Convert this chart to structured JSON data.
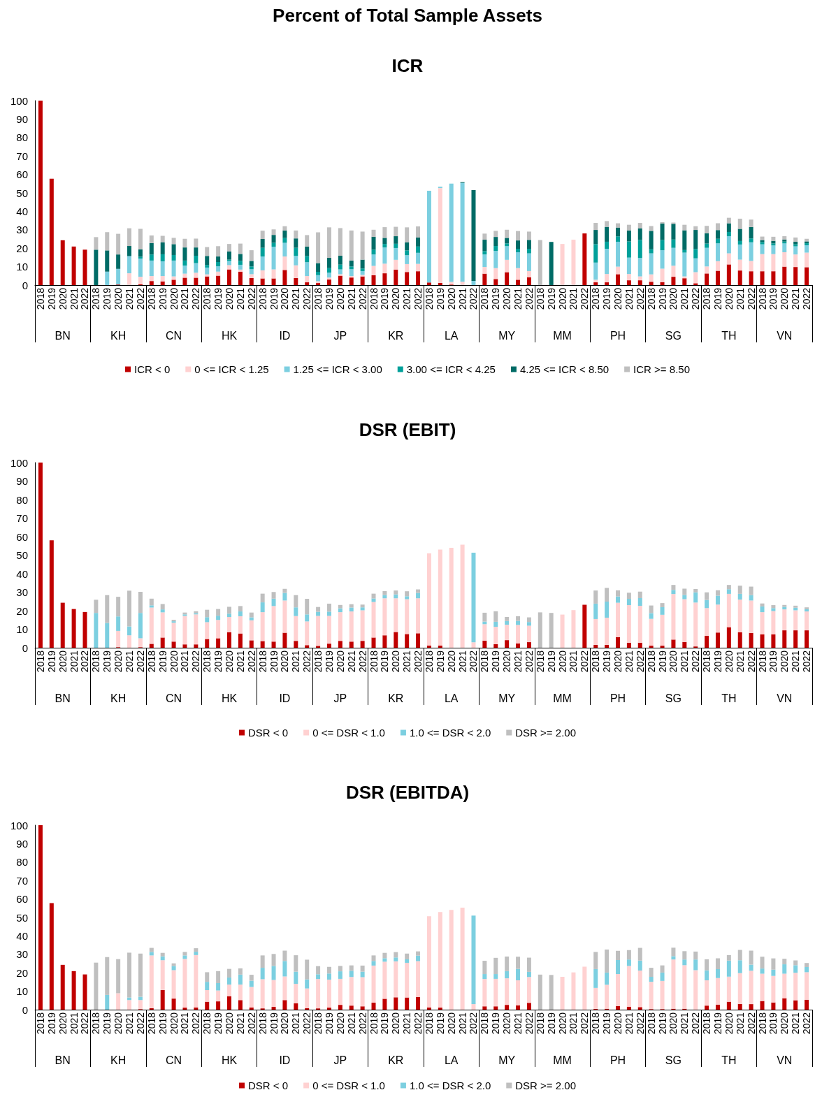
{
  "chart_data": [
    {
      "type": "bar",
      "stacked": true,
      "title": "Percent of Total Sample Assets",
      "subtitle": "ICR",
      "legend": "bottom",
      "ylim": [
        0,
        100
      ],
      "yticks": [
        0,
        10,
        20,
        30,
        40,
        50,
        60,
        70,
        80,
        90,
        100
      ],
      "categories": [
        "2018",
        "2019",
        "2020",
        "2021",
        "2022",
        "2018",
        "2019",
        "2020",
        "2021",
        "2022",
        "2018",
        "2019",
        "2020",
        "2021",
        "2022",
        "2018",
        "2019",
        "2020",
        "2021",
        "2022",
        "2018",
        "2019",
        "2020",
        "2021",
        "2022",
        "2018",
        "2019",
        "2020",
        "2021",
        "2022",
        "2018",
        "2019",
        "2020",
        "2021",
        "2022",
        "2018",
        "2019",
        "2020",
        "2021",
        "2022",
        "2018",
        "2019",
        "2020",
        "2021",
        "2022",
        "2018",
        "2019",
        "2020",
        "2021",
        "2022",
        "2018",
        "2019",
        "2020",
        "2021",
        "2022",
        "2018",
        "2019",
        "2020",
        "2021",
        "2022",
        "2018",
        "2019",
        "2020",
        "2021",
        "2022",
        "2018",
        "2019",
        "2020",
        "2021",
        "2022"
      ],
      "annotations": [
        "BN",
        "KH",
        "CN",
        "HK",
        "ID",
        "JP",
        "KR",
        "LA",
        "MY",
        "MM",
        "PH",
        "SG",
        "TH",
        "VN"
      ],
      "series": [
        {
          "name": "ICR < 0",
          "color": "#c00000",
          "values": [
            100,
            57.7,
            24.3,
            20.9,
            19.2,
            0,
            0,
            0.3,
            0,
            0.4,
            2.2,
            2,
            2.9,
            4,
            4,
            4.7,
            5.1,
            8.5,
            7.3,
            3.8,
            3.6,
            3.6,
            8.2,
            3.8,
            1.5,
            1.1,
            3,
            5.1,
            4.1,
            4.7,
            5.3,
            6.4,
            8.4,
            7.1,
            7.5,
            1.4,
            1.2,
            0.3,
            0,
            0,
            6.2,
            3.3,
            7,
            2.9,
            4.2,
            0,
            0,
            0,
            0,
            28,
            1.5,
            1.5,
            5.9,
            2.6,
            2.6,
            1.8,
            1.6,
            4.5,
            3.7,
            1,
            6.3,
            7.8,
            11.2,
            7.9,
            7.5,
            7.5,
            7.5,
            10,
            9.8,
            9.7
          ]
        },
        {
          "name": "0 <= ICR < 1.25",
          "color": "#ffd1d1",
          "values": [
            0,
            0,
            0,
            0,
            0,
            0,
            0,
            0,
            6.4,
            4.1,
            2.7,
            2.9,
            1.8,
            2.2,
            2.7,
            1.1,
            2.2,
            2.3,
            1.1,
            2.1,
            4.4,
            4.9,
            7.3,
            6.9,
            3.4,
            1,
            1.1,
            0.8,
            0.8,
            0.8,
            5.1,
            5.2,
            5.3,
            4.3,
            4,
            0,
            51.4,
            1.4,
            1.8,
            0,
            3.6,
            5.9,
            6.7,
            6.3,
            3.4,
            0,
            0,
            22.3,
            24.6,
            0,
            1.4,
            4.5,
            4.1,
            3.4,
            2.1,
            4,
            7.3,
            6,
            1,
            6,
            3.8,
            5.2,
            6,
            5.9,
            5.6,
            9.3,
            9.3,
            7.8,
            6.8,
            7.9
          ]
        },
        {
          "name": "1.25 <= ICR < 3.00",
          "color": "#7ccfe0",
          "values": [
            0,
            0,
            0,
            0,
            0,
            0,
            7.3,
            8.5,
            9.3,
            9.9,
            8.4,
            8,
            8.6,
            4.4,
            5.2,
            3.7,
            2.9,
            2.3,
            2.6,
            2.7,
            7.5,
            12.3,
            7.4,
            5.1,
            7.5,
            3.3,
            2.6,
            2.6,
            3.7,
            2.1,
            6.2,
            8.8,
            6.4,
            4.8,
            6,
            49.7,
            0.7,
            53.3,
            53.6,
            2.3,
            6.8,
            9.3,
            7.4,
            8.6,
            9.6,
            0,
            0,
            0,
            0,
            0,
            9.3,
            13.7,
            13.5,
            8.9,
            10,
            11.4,
            10,
            9.7,
            12.9,
            7.5,
            10.1,
            9.6,
            9.3,
            8.2,
            10.1,
            5.3,
            4.7,
            4.8,
            4.4,
            4
          ]
        },
        {
          "name": "3.00 <= ICR < 4.25",
          "color": "#00a09a",
          "values": [
            0,
            0,
            0,
            0,
            0,
            0,
            0,
            0,
            0,
            1,
            3.3,
            3.8,
            3,
            2.7,
            4,
            1.4,
            2.3,
            0.7,
            2.1,
            1.5,
            4.7,
            2.1,
            2.6,
            4.4,
            3.3,
            1.8,
            2.5,
            2.6,
            1.5,
            1.4,
            2.6,
            1.9,
            2.3,
            2.6,
            3.4,
            0,
            0,
            0,
            0,
            0,
            1.8,
            2.7,
            1.5,
            1.9,
            2.5,
            0,
            0,
            0,
            0,
            0,
            10,
            3.8,
            2.9,
            8.8,
            9.8,
            2.2,
            5.5,
            4.5,
            1.4,
            5.1,
            2.3,
            2.5,
            2.3,
            1.9,
            2.1,
            1.2,
            1.1,
            1,
            1.1,
            1.1
          ]
        },
        {
          "name": "4.25 <= ICR < 8.50",
          "color": "#006b66",
          "values": [
            0,
            0,
            0,
            0,
            0,
            19.2,
            11.5,
            7.8,
            5.5,
            4,
            6.2,
            6.4,
            5.9,
            7.1,
            4.5,
            4.9,
            3,
            4.4,
            3.8,
            3,
            4.8,
            4.3,
            4.1,
            5.1,
            5.2,
            4.7,
            5.6,
            4.8,
            3.2,
            4.8,
            7,
            3.3,
            4.1,
            4.3,
            4.9,
            0,
            0,
            0,
            0.4,
            49.2,
            6.2,
            4.9,
            3,
            4.5,
            4.8,
            0,
            23.4,
            0,
            0,
            0,
            7.7,
            8.1,
            4.8,
            5.9,
            6.2,
            10,
            9,
            8.5,
            10.7,
            10.3,
            5.6,
            4.7,
            4.7,
            6.6,
            6.2,
            1.1,
            1.4,
            1.1,
            1.4,
            1
          ]
        },
        {
          "name": "ICR >= 8.50",
          "color": "#bfbfbf",
          "values": [
            0,
            0,
            0,
            0,
            0,
            6.8,
            9.9,
            11.2,
            9.6,
            11.1,
            4.1,
            3.6,
            3.4,
            4.7,
            4.8,
            4.8,
            5.6,
            4.1,
            5.6,
            5.8,
            4.5,
            3,
            2.3,
            4.3,
            6.2,
            16.7,
            16.5,
            15,
            16.3,
            15.2,
            3.8,
            5.8,
            5.1,
            8.2,
            6,
            0,
            0,
            0,
            0,
            0,
            3.3,
            3.3,
            4.4,
            5.1,
            4.5,
            24.4,
            0,
            0,
            0,
            0,
            3.8,
            3.1,
            2.3,
            3.1,
            3,
            2.6,
            0.7,
            0.7,
            3,
            2,
            4,
            3.7,
            3,
            5.5,
            4,
            1.9,
            2.2,
            1.8,
            2.3,
            1.4
          ]
        }
      ]
    },
    {
      "type": "bar",
      "stacked": true,
      "title": "DSR (EBIT)",
      "legend": "bottom",
      "ylim": [
        0,
        100
      ],
      "yticks": [
        0,
        10,
        20,
        30,
        40,
        50,
        60,
        70,
        80,
        90,
        100
      ],
      "categories": [
        "2018",
        "2019",
        "2020",
        "2021",
        "2022",
        "2018",
        "2019",
        "2020",
        "2021",
        "2022",
        "2018",
        "2019",
        "2020",
        "2021",
        "2022",
        "2018",
        "2019",
        "2020",
        "2021",
        "2022",
        "2018",
        "2019",
        "2020",
        "2021",
        "2022",
        "2018",
        "2019",
        "2020",
        "2021",
        "2022",
        "2018",
        "2019",
        "2020",
        "2021",
        "2022",
        "2018",
        "2019",
        "2020",
        "2021",
        "2022",
        "2018",
        "2019",
        "2020",
        "2021",
        "2022",
        "2018",
        "2019",
        "2020",
        "2021",
        "2022",
        "2018",
        "2019",
        "2020",
        "2021",
        "2022",
        "2018",
        "2019",
        "2020",
        "2021",
        "2022",
        "2018",
        "2019",
        "2020",
        "2021",
        "2022",
        "2018",
        "2019",
        "2020",
        "2021",
        "2022"
      ],
      "annotations": [
        "BN",
        "KH",
        "CN",
        "HK",
        "ID",
        "JP",
        "KR",
        "LA",
        "MY",
        "MM",
        "PH",
        "SG",
        "TH",
        "VN"
      ],
      "series": [
        {
          "name": "DSR < 0",
          "color": "#c00000",
          "values": [
            100,
            58,
            24.3,
            20.9,
            19.3,
            0,
            0,
            0.3,
            0,
            0.3,
            2.1,
            5.5,
            3.3,
            1.8,
            1.8,
            4.7,
            5.1,
            8.4,
            7.7,
            4,
            3.6,
            3.3,
            8.1,
            3.7,
            1.4,
            1,
            2.2,
            3.7,
            3.3,
            3.7,
            5.5,
            6.7,
            8.5,
            7.4,
            7.8,
            1.2,
            1.2,
            null,
            0,
            0,
            3.8,
            1.9,
            4.1,
            2.3,
            3,
            0,
            0,
            0,
            0,
            23.2,
            1.5,
            1.5,
            5.7,
            2.7,
            2.7,
            1.1,
            1.1,
            4.4,
            3.1,
            0.7,
            6.4,
            8.2,
            11.1,
            8.3,
            8,
            7.2,
            7.2,
            9.4,
            9.4,
            9.4
          ]
        },
        {
          "name": "0 <= DSR < 1.0",
          "color": "#ffd1d1",
          "values": [
            0,
            0,
            0,
            0,
            0,
            0,
            0,
            8.8,
            6.7,
            4.8,
            19.6,
            13.6,
            10.2,
            15.4,
            16.2,
            9.1,
            9.9,
            8.2,
            9.3,
            10.8,
            15.6,
            19.2,
            17.4,
            13.4,
            12.8,
            16.2,
            15,
            15.5,
            16.3,
            16.5,
            19.2,
            20,
            18.2,
            18.8,
            18.9,
            49.7,
            51.8,
            54,
            55.7,
            2.9,
            8.9,
            9.4,
            8.3,
            10,
            8.9,
            0,
            0,
            17.9,
            20.3,
            0,
            14,
            14.7,
            18.6,
            20.3,
            19.9,
            14.5,
            16.7,
            24.6,
            23.1,
            23.7,
            15,
            15.1,
            18,
            17.7,
            17.5,
            12,
            12.6,
            11.3,
            10.8,
            10.2
          ]
        },
        {
          "name": "1.0 <= DSR < 2.0",
          "color": "#7ccfe0",
          "values": [
            0,
            0,
            0,
            0,
            0,
            18.8,
            13.4,
            7.8,
            4.8,
            13.7,
            1.2,
            1.6,
            0.8,
            0.8,
            0.7,
            2.7,
            2.3,
            1.8,
            2.6,
            1.6,
            5.3,
            4,
            4.1,
            4.7,
            3.8,
            2.2,
            2.3,
            2.1,
            2.1,
            1.6,
            1.9,
            1.8,
            2.1,
            1.6,
            2.9,
            0,
            0,
            0,
            0,
            48.4,
            1.4,
            2.7,
            2,
            2.2,
            2,
            0,
            0,
            0,
            0,
            0,
            8.3,
            8.7,
            3.4,
            3.4,
            4.2,
            3.1,
            4.1,
            2.2,
            2.3,
            5.5,
            4.4,
            4.8,
            2.5,
            3.1,
            2.9,
            3.1,
            1.6,
            1.4,
            1.4,
            1.2
          ]
        },
        {
          "name": "DSR >= 2.00",
          "color": "#bfbfbf",
          "values": [
            0,
            0,
            0,
            0,
            0,
            7.1,
            15,
            10.6,
            19.3,
            11.4,
            3.6,
            2.9,
            0.8,
            1,
            1,
            4,
            3.6,
            3.7,
            2.9,
            2.6,
            4.7,
            3.6,
            2.2,
            6.6,
            8.4,
            2.6,
            4.3,
            1.8,
            1.8,
            1.5,
            2.6,
            2.1,
            2.1,
            2.7,
            1.9,
            0,
            null,
            0,
            0,
            0,
            4.8,
            5.7,
            2.2,
            2.5,
            2.5,
            19.1,
            18.8,
            0,
            0,
            0,
            7.1,
            7.4,
            3.3,
            3.3,
            3.5,
            4.1,
            2.2,
            2.7,
            3.4,
            1.8,
            4.1,
            2.9,
            2.3,
            4.4,
            4.6,
            1.6,
            1.6,
            1,
            1.1,
            1
          ]
        }
      ]
    },
    {
      "type": "bar",
      "stacked": true,
      "title": "DSR (EBITDA)",
      "legend": "bottom",
      "ylim": [
        0,
        100
      ],
      "yticks": [
        0,
        10,
        20,
        30,
        40,
        50,
        60,
        70,
        80,
        90,
        100
      ],
      "categories": [
        "2018",
        "2019",
        "2020",
        "2021",
        "2022",
        "2018",
        "2019",
        "2020",
        "2021",
        "2022",
        "2018",
        "2019",
        "2020",
        "2021",
        "2022",
        "2018",
        "2019",
        "2020",
        "2021",
        "2022",
        "2018",
        "2019",
        "2020",
        "2021",
        "2022",
        "2018",
        "2019",
        "2020",
        "2021",
        "2022",
        "2018",
        "2019",
        "2020",
        "2021",
        "2022",
        "2018",
        "2019",
        "2020",
        "2021",
        "2022",
        "2018",
        "2019",
        "2020",
        "2021",
        "2022",
        "2018",
        "2019",
        "2020",
        "2021",
        "2022",
        "2018",
        "2019",
        "2020",
        "2021",
        "2022",
        "2018",
        "2019",
        "2020",
        "2021",
        "2022",
        "2018",
        "2019",
        "2020",
        "2021",
        "2022",
        "2018",
        "2019",
        "2020",
        "2021",
        "2022"
      ],
      "annotations": [
        "BN",
        "KH",
        "CN",
        "HK",
        "ID",
        "JP",
        "KR",
        "LA",
        "MY",
        "MM",
        "PH",
        "SG",
        "TH",
        "VN"
      ],
      "series": [
        {
          "name": "DSR < 0",
          "color": "#c00000",
          "values": [
            100,
            57.8,
            24.3,
            20.9,
            19.1,
            0,
            0,
            0,
            0,
            0.3,
            0.8,
            10.6,
            6,
            1.1,
            1.2,
            4.3,
            4.5,
            7.3,
            5.2,
            1.2,
            0.7,
            1.5,
            5.2,
            3.4,
            0.8,
            0.7,
            1.1,
            2.6,
            2.2,
            1.8,
            3.8,
            5.9,
            6.7,
            6.6,
            6.9,
            1.2,
            1.1,
            0,
            0,
            0,
            1.8,
            1.8,
            2.6,
            2.3,
            3.7,
            0,
            0,
            0,
            0,
            0,
            0.4,
            0.5,
            2,
            1.6,
            1.4,
            0.3,
            0.3,
            0.5,
            0.5,
            0,
            2.2,
            2.7,
            4.3,
            3.1,
            3,
            4.7,
            3.9,
            6.2,
            5.1,
            5.4
          ]
        },
        {
          "name": "0 <= DSR < 1.0",
          "color": "#ffd1d1",
          "values": [
            0,
            0,
            0,
            0,
            0,
            null,
            0,
            8.9,
            5.2,
            4.9,
            28.6,
            16.2,
            15.4,
            26.4,
            28.4,
            6.3,
            5.9,
            6.3,
            8.4,
            11.1,
            15.8,
            14.6,
            12.8,
            10.6,
            10.7,
            15.9,
            15.2,
            14.1,
            15.5,
            15.8,
            20.1,
            20.1,
            19.5,
            18.8,
            19.4,
            49.5,
            51.8,
            54.1,
            55.3,
            3,
            14.8,
            14.9,
            14.4,
            13.6,
            14,
            0,
            0,
            17.8,
            20.2,
            23.3,
            11.4,
            13,
            17.3,
            22.1,
            19.8,
            14.8,
            15.3,
            26.7,
            23.6,
            21.4,
            13.7,
            14.4,
            13.6,
            16.7,
            18.1,
            14.8,
            14.4,
            13.3,
            14.9,
            14.9
          ]
        },
        {
          "name": "1.0 <= DSR < 2.0",
          "color": "#7ccfe0",
          "values": [
            0,
            0,
            0,
            0,
            0,
            0,
            8,
            0,
            1.4,
            1.8,
            1.9,
            2.1,
            2.3,
            1.9,
            1.8,
            4.5,
            4,
            3.8,
            5.4,
            3.4,
            6.2,
            7.6,
            8.4,
            6.6,
            4.9,
            2.6,
            3.3,
            4.1,
            3.4,
            3,
            2.5,
            1.9,
            2.1,
            1.9,
            3,
            0,
            0,
            0,
            0,
            48,
            2.7,
            2.6,
            3.9,
            6.2,
            2.8,
            0,
            0,
            0,
            0,
            0,
            10.2,
            6.6,
            7.6,
            3.5,
            5.4,
            2.7,
            4.5,
            1.8,
            3.1,
            5.8,
            5.4,
            4.9,
            8.7,
            7,
            3.3,
            2.8,
            3.4,
            5.1,
            4.1,
            2.8
          ]
        },
        {
          "name": "DSR >= 2.00",
          "color": "#bfbfbf",
          "values": [
            0,
            0,
            0,
            0,
            0,
            25.5,
            20.5,
            18.5,
            24.3,
            23.4,
            2.2,
            1.9,
            1.4,
            1.9,
            1.9,
            5.2,
            6.5,
            4.7,
            3.4,
            3.2,
            6.7,
            6.5,
            5.6,
            8.9,
            10.7,
            4.4,
            3.6,
            2.9,
            2.9,
            3.3,
            3,
            2.9,
            2.9,
            3.1,
            2.3,
            0,
            null,
            0,
            0,
            0,
            7.2,
            8.8,
            7.9,
            6.6,
            7.7,
            19,
            18.8,
            0,
            0,
            0,
            9.3,
            12.5,
            5,
            5.1,
            6.9,
            4.9,
            3.9,
            4.6,
            4.5,
            4.3,
            6,
            5.8,
            3,
            5.6,
            7.6,
            6.4,
            6.1,
            3,
            2.6,
            2.2
          ]
        }
      ]
    }
  ]
}
